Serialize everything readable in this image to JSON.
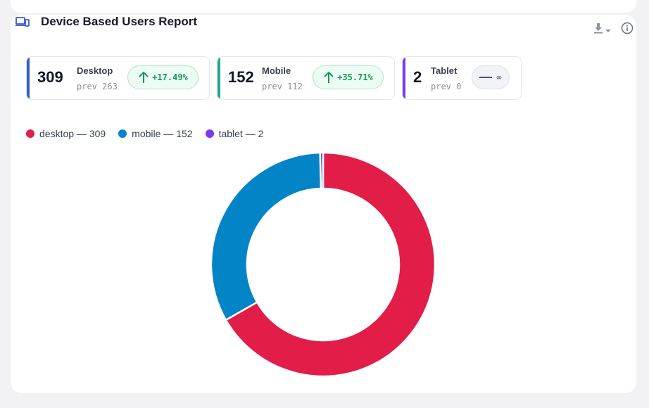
{
  "header": {
    "title": "Device Based Users Report",
    "icon": "devices-icon",
    "accent": "#3a5bd9"
  },
  "actions": {
    "download_icon": "download-icon",
    "dropdown_icon": "caret-down-icon",
    "info_icon": "info-icon"
  },
  "stats": [
    {
      "count": "309",
      "label": "Desktop",
      "prev": "prev 263",
      "change": "+17.49%",
      "trend": "up",
      "color": "#2f5fd0"
    },
    {
      "count": "152",
      "label": "Mobile",
      "prev": "prev 112",
      "change": "+35.71%",
      "trend": "up",
      "color": "#1fa79a"
    },
    {
      "count": "2",
      "label": "Tablet",
      "prev": "prev 0",
      "change": "∞",
      "trend": "flat",
      "color": "#7c3aed"
    }
  ],
  "legend": [
    {
      "text": "desktop — 309",
      "color": "#e11d48"
    },
    {
      "text": "mobile — 152",
      "color": "#0284c7"
    },
    {
      "text": "tablet — 2",
      "color": "#7c3aed"
    }
  ],
  "chart_data": {
    "type": "pie",
    "variant": "donut",
    "categories": [
      "desktop",
      "mobile",
      "tablet"
    ],
    "values": [
      309,
      152,
      2
    ],
    "colors": [
      "#e11d48",
      "#0284c7",
      "#7c3aed"
    ],
    "legend_position": "top-left"
  }
}
